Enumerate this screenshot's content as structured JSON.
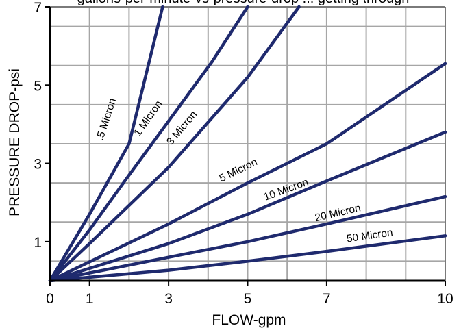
{
  "colors": {
    "series": "#1f2a6e",
    "grid": "#a6a6a6",
    "frame": "#7a7a7a",
    "axis": "#000000"
  },
  "chart_data": {
    "type": "line",
    "title": "gallons-per-minute-vs-pressure-drop ... getting through",
    "xlabel": "FLOW-gpm",
    "ylabel": "PRESSURE DROP-psi",
    "xlim": [
      0,
      10
    ],
    "ylim": [
      0,
      7
    ],
    "xticks": [
      0,
      1,
      3,
      5,
      7,
      10
    ],
    "yticks": [
      1,
      3,
      5,
      7
    ],
    "grid": true,
    "series": [
      {
        "name": ".5 Micron",
        "points": [
          [
            0,
            0
          ],
          [
            1,
            1.7
          ],
          [
            2,
            3.5
          ],
          [
            2.85,
            7
          ]
        ]
      },
      {
        "name": "1 Micron",
        "points": [
          [
            0,
            0
          ],
          [
            1,
            1.3
          ],
          [
            2,
            2.7
          ],
          [
            4.1,
            5.6
          ],
          [
            5,
            7
          ]
        ]
      },
      {
        "name": "3 Micron",
        "points": [
          [
            0,
            0
          ],
          [
            1,
            0.95
          ],
          [
            3,
            2.9
          ],
          [
            5,
            5.2
          ],
          [
            6.3,
            7
          ]
        ]
      },
      {
        "name": "5 Micron",
        "points": [
          [
            0,
            0
          ],
          [
            3,
            1.45
          ],
          [
            5,
            2.5
          ],
          [
            7,
            3.5
          ],
          [
            10,
            5.55
          ]
        ]
      },
      {
        "name": "10 Micron",
        "points": [
          [
            0,
            0
          ],
          [
            3,
            0.95
          ],
          [
            5,
            1.7
          ],
          [
            7,
            2.55
          ],
          [
            10,
            3.8
          ]
        ]
      },
      {
        "name": "20 Micron",
        "points": [
          [
            0,
            0
          ],
          [
            3,
            0.6
          ],
          [
            5,
            1.0
          ],
          [
            7,
            1.45
          ],
          [
            10,
            2.15
          ]
        ]
      },
      {
        "name": "50 Micron",
        "points": [
          [
            0,
            0
          ],
          [
            3,
            0.27
          ],
          [
            5,
            0.5
          ],
          [
            7,
            0.75
          ],
          [
            10,
            1.15
          ]
        ]
      }
    ]
  }
}
